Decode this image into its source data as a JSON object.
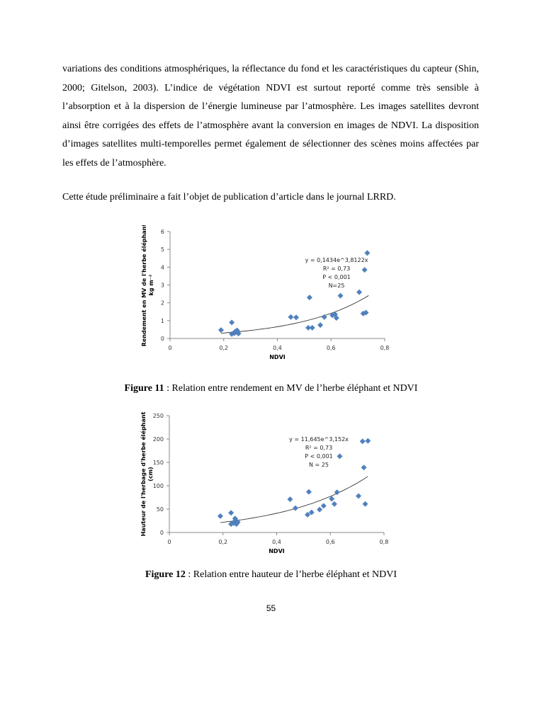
{
  "paragraphs": [
    "variations des conditions atmosphériques, la réflectance du fond et les caractéristiques du capteur (Shin, 2000; Gitelson, 2003). L’indice de végétation NDVI est surtout reporté comme très sensible à l’absorption et à la dispersion de l’énergie lumineuse par l’atmosphère. Les images satellites devront ainsi être corrigées des effets de l’atmosphère avant la conversion en images de NDVI. La disposition d’images satellites multi-temporelles permet également de sélectionner des scènes moins affectées par les effets de l’atmosphère.",
    "Cette étude préliminaire a fait l’objet de publication d’article dans le journal LRRD."
  ],
  "figures": [
    {
      "label": "Figure 11",
      "caption": " : Relation entre rendement en MV de l’herbe éléphant et NDVI"
    },
    {
      "label": "Figure 12",
      "caption": " : Relation entre hauteur de l’herbe éléphant et NDVI"
    }
  ],
  "page_number": "55",
  "chart_data": [
    {
      "type": "scatter",
      "xlabel": "NDVI",
      "ylabel": "Rendement en MV de l'herbe éléphant",
      "ylabel2": "kg m⁻²",
      "xlim": [
        0,
        0.8
      ],
      "ylim": [
        0,
        6
      ],
      "xticks": [
        "0",
        "0,2",
        "0,4",
        "0,6",
        "0,8"
      ],
      "xtick_values": [
        0,
        0.2,
        0.4,
        0.6,
        0.8
      ],
      "yticks": [
        "0",
        "1",
        "2",
        "3",
        "4",
        "5",
        "6"
      ],
      "ytick_values": [
        0,
        1,
        2,
        3,
        4,
        5,
        6
      ],
      "trend": {
        "a": 0.1434,
        "b": 3.8122,
        "xrange": [
          0.19,
          0.74
        ]
      },
      "annotation": [
        "y = 0,1434e^3,8122x",
        "R² = 0,73",
        "P < 0,001",
        "N=25"
      ],
      "points": [
        [
          0.19,
          0.47
        ],
        [
          0.23,
          0.9
        ],
        [
          0.23,
          0.25
        ],
        [
          0.24,
          0.3
        ],
        [
          0.24,
          0.35
        ],
        [
          0.245,
          0.4
        ],
        [
          0.25,
          0.45
        ],
        [
          0.255,
          0.28
        ],
        [
          0.25,
          0.35
        ],
        [
          0.45,
          1.2
        ],
        [
          0.47,
          1.18
        ],
        [
          0.52,
          2.3
        ],
        [
          0.515,
          0.6
        ],
        [
          0.53,
          0.6
        ],
        [
          0.56,
          0.75
        ],
        [
          0.575,
          1.2
        ],
        [
          0.605,
          1.3
        ],
        [
          0.615,
          1.35
        ],
        [
          0.62,
          1.15
        ],
        [
          0.635,
          2.4
        ],
        [
          0.705,
          2.6
        ],
        [
          0.72,
          1.4
        ],
        [
          0.73,
          1.45
        ],
        [
          0.725,
          3.85
        ],
        [
          0.735,
          4.8
        ]
      ],
      "color": "#4f81bd"
    },
    {
      "type": "scatter",
      "xlabel": "NDVI",
      "ylabel": "Hauteur de l'herbage d'herbe éléphant",
      "ylabel2": "(cm)",
      "xlim": [
        0,
        0.8
      ],
      "ylim": [
        0,
        250
      ],
      "xticks": [
        "0",
        "0,2",
        "0,4",
        "0,6",
        "0,8"
      ],
      "xtick_values": [
        0,
        0.2,
        0.4,
        0.6,
        0.8
      ],
      "yticks": [
        "0",
        "50",
        "100",
        "150",
        "200",
        "250"
      ],
      "ytick_values": [
        0,
        50,
        100,
        150,
        200,
        250
      ],
      "trend": {
        "a": 11.645,
        "b": 3.152,
        "xrange": [
          0.19,
          0.74
        ]
      },
      "annotation": [
        "y = 11,645e^3,152x",
        "R² = 0,73",
        "P < 0,001",
        "N = 25"
      ],
      "points": [
        [
          0.19,
          35
        ],
        [
          0.23,
          42
        ],
        [
          0.23,
          18
        ],
        [
          0.24,
          20
        ],
        [
          0.24,
          22
        ],
        [
          0.245,
          30
        ],
        [
          0.25,
          25
        ],
        [
          0.25,
          18
        ],
        [
          0.255,
          22
        ],
        [
          0.45,
          71
        ],
        [
          0.47,
          52
        ],
        [
          0.52,
          87
        ],
        [
          0.515,
          38
        ],
        [
          0.53,
          43
        ],
        [
          0.56,
          49
        ],
        [
          0.575,
          57
        ],
        [
          0.605,
          72
        ],
        [
          0.615,
          61
        ],
        [
          0.625,
          86
        ],
        [
          0.635,
          163
        ],
        [
          0.705,
          78
        ],
        [
          0.72,
          195
        ],
        [
          0.725,
          139
        ],
        [
          0.73,
          61
        ],
        [
          0.74,
          196
        ]
      ],
      "color": "#4f81bd"
    }
  ]
}
